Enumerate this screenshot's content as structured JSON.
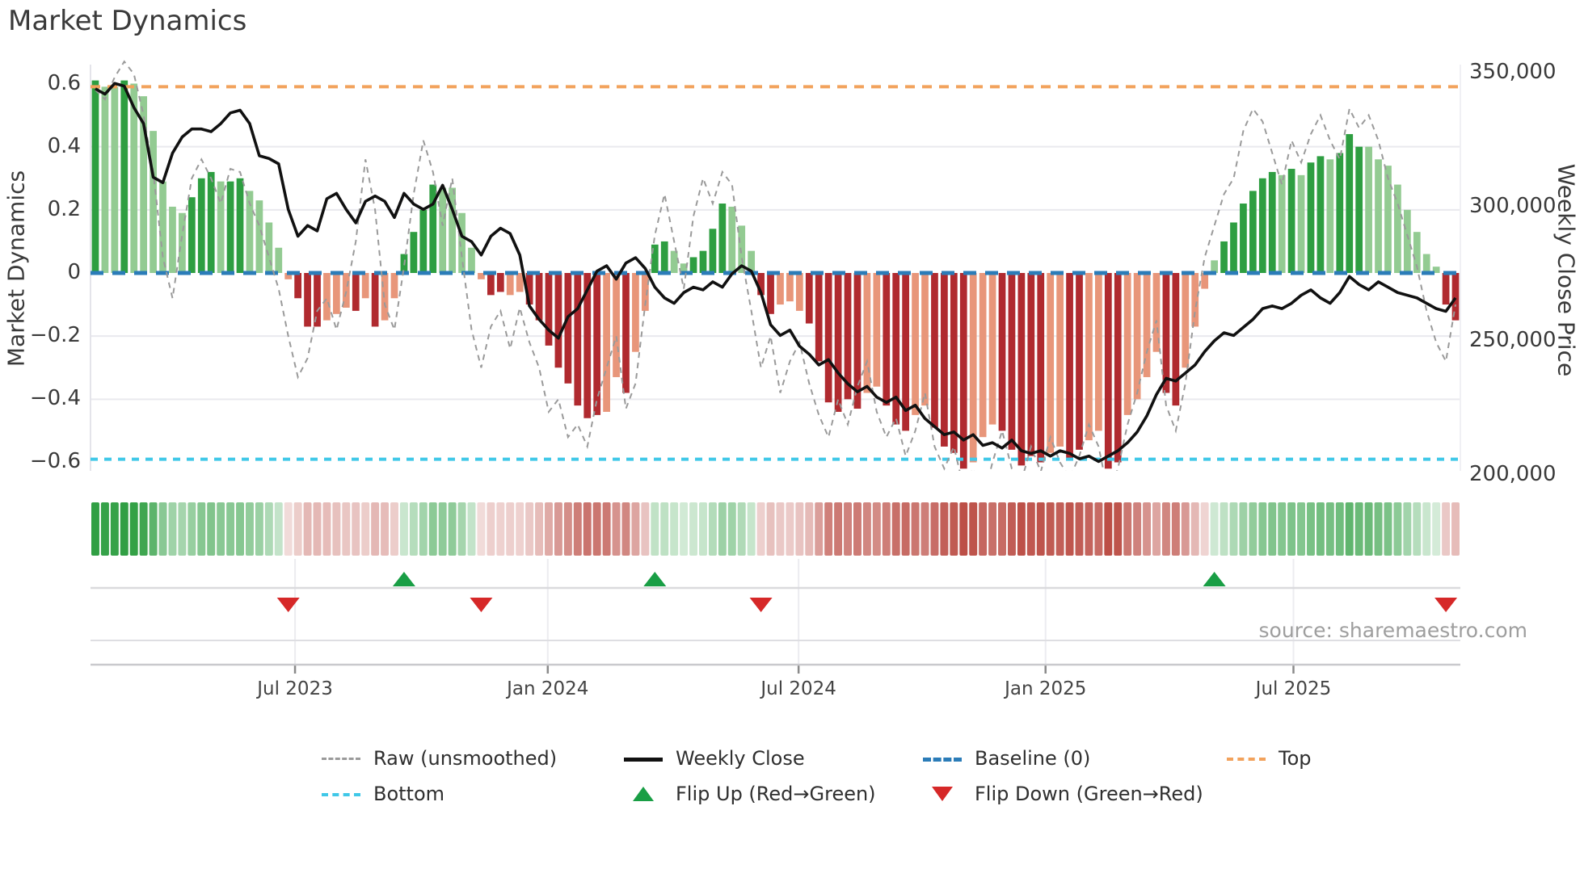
{
  "title": "Market Dynamics",
  "source_text": "source: sharemaestro.com",
  "left_axis": {
    "label": "Market Dynamics",
    "ticks": [
      {
        "label": "0.6",
        "value": 0.6
      },
      {
        "label": "0.4",
        "value": 0.4
      },
      {
        "label": "0.2",
        "value": 0.2
      },
      {
        "label": "0",
        "value": 0.0
      },
      {
        "label": "−0.2",
        "value": -0.2
      },
      {
        "label": "−0.4",
        "value": -0.4
      },
      {
        "label": "−0.6",
        "value": -0.6
      }
    ]
  },
  "right_axis": {
    "label": "Weekly Close Price",
    "ticks": [
      {
        "label": "350,000",
        "value": 350000
      },
      {
        "label": "300,000",
        "value": 300000
      },
      {
        "label": "250,000",
        "value": 250000
      },
      {
        "label": "200,000",
        "value": 200000
      }
    ]
  },
  "x_axis": {
    "ticks": [
      {
        "label": "Jul 2023",
        "week": 21.7
      },
      {
        "label": "Jan 2024",
        "week": 47.9
      },
      {
        "label": "Jul 2024",
        "week": 73.9
      },
      {
        "label": "Jan 2025",
        "week": 99.5
      },
      {
        "label": "Jul 2025",
        "week": 125.2
      }
    ]
  },
  "legend": {
    "rows": [
      [
        {
          "label": "Raw (unsmoothed)",
          "swatch": "raw"
        },
        {
          "label": "Weekly Close",
          "swatch": "close"
        },
        {
          "label": "Baseline (0)",
          "swatch": "baseline"
        },
        {
          "label": "Top",
          "swatch": "top"
        }
      ],
      [
        {
          "label": "Bottom",
          "swatch": "bottom"
        },
        {
          "label": "Flip Up (Red→Green)",
          "swatch": "tri-up"
        },
        {
          "label": "Flip Down (Green→Red)",
          "swatch": "tri-down"
        }
      ]
    ]
  },
  "colors": {
    "bar_green_dark": "#2e9e41",
    "bar_green_light": "#93cb92",
    "bar_red_dark": "#b02a2f",
    "bar_red_light": "#e8967a",
    "heat_green": "#2e9e41",
    "heat_red": "#bc4f47",
    "raw_line": "#9a9a9a",
    "close_line": "#111111",
    "baseline": "#2b7cb8",
    "top_line": "#f2a25c",
    "bottom_line": "#40c8e8",
    "flip_up": "#199e45",
    "flip_down": "#d62828",
    "grid": "#e9e9ee"
  },
  "chart_data": {
    "type": "bar",
    "subtype": "weekly oscillator bars + price lines + sign heatmap + flip markers",
    "weeks": 142,
    "x_description": "weekly observations, early Feb 2023 through early Nov 2025",
    "ylim_left": [
      -0.66,
      0.66
    ],
    "ylim_right": [
      195000,
      355000
    ],
    "reference_lines": {
      "top": {
        "label": "Top",
        "value": 0.59
      },
      "baseline": {
        "label": "Baseline (0)",
        "value": 0.0
      },
      "bottom": {
        "label": "Bottom",
        "value": -0.59
      }
    },
    "bars": {
      "name": "Market Dynamics",
      "values": [
        0.61,
        0.59,
        0.59,
        0.61,
        0.6,
        0.56,
        0.45,
        0.29,
        0.21,
        0.19,
        0.24,
        0.3,
        0.32,
        0.29,
        0.29,
        0.3,
        0.26,
        0.23,
        0.16,
        0.08,
        -0.02,
        -0.08,
        -0.17,
        -0.17,
        -0.15,
        -0.13,
        -0.11,
        -0.12,
        -0.08,
        -0.17,
        -0.15,
        -0.08,
        0.06,
        0.13,
        0.2,
        0.28,
        0.27,
        0.27,
        0.19,
        0.08,
        -0.02,
        -0.07,
        -0.06,
        -0.07,
        -0.06,
        -0.1,
        -0.15,
        -0.23,
        -0.3,
        -0.35,
        -0.42,
        -0.46,
        -0.45,
        -0.44,
        -0.33,
        -0.38,
        -0.25,
        -0.12,
        0.09,
        0.1,
        0.07,
        0.03,
        0.05,
        0.07,
        0.14,
        0.22,
        0.21,
        0.15,
        0.07,
        -0.07,
        -0.13,
        -0.1,
        -0.09,
        -0.12,
        -0.16,
        -0.28,
        -0.41,
        -0.44,
        -0.4,
        -0.43,
        -0.38,
        -0.36,
        -0.42,
        -0.48,
        -0.5,
        -0.45,
        -0.42,
        -0.49,
        -0.55,
        -0.57,
        -0.62,
        -0.6,
        -0.52,
        -0.48,
        -0.5,
        -0.56,
        -0.61,
        -0.58,
        -0.6,
        -0.57,
        -0.55,
        -0.59,
        -0.56,
        -0.53,
        -0.5,
        -0.62,
        -0.6,
        -0.45,
        -0.4,
        -0.33,
        -0.25,
        -0.38,
        -0.42,
        -0.3,
        -0.17,
        -0.05,
        0.04,
        0.1,
        0.16,
        0.22,
        0.26,
        0.3,
        0.32,
        0.31,
        0.33,
        0.31,
        0.35,
        0.37,
        0.36,
        0.38,
        0.44,
        0.4,
        0.4,
        0.36,
        0.34,
        0.28,
        0.2,
        0.13,
        0.06,
        0.02,
        -0.1,
        -0.15
      ],
      "shade": [
        "d",
        "l",
        "l",
        "d",
        "l",
        "l",
        "l",
        "l",
        "l",
        "l",
        "d",
        "d",
        "d",
        "l",
        "d",
        "d",
        "l",
        "l",
        "l",
        "l",
        "l",
        "d",
        "d",
        "d",
        "l",
        "l",
        "l",
        "d",
        "l",
        "d",
        "l",
        "l",
        "d",
        "d",
        "d",
        "d",
        "l",
        "l",
        "l",
        "l",
        "l",
        "d",
        "d",
        "l",
        "l",
        "d",
        "d",
        "d",
        "d",
        "d",
        "d",
        "d",
        "d",
        "l",
        "l",
        "d",
        "l",
        "l",
        "d",
        "d",
        "l",
        "l",
        "d",
        "d",
        "d",
        "d",
        "l",
        "l",
        "l",
        "d",
        "d",
        "l",
        "l",
        "l",
        "d",
        "d",
        "d",
        "d",
        "d",
        "d",
        "l",
        "l",
        "d",
        "d",
        "d",
        "l",
        "l",
        "d",
        "d",
        "d",
        "d",
        "l",
        "l",
        "l",
        "d",
        "d",
        "d",
        "d",
        "d",
        "l",
        "l",
        "d",
        "d",
        "l",
        "l",
        "d",
        "d",
        "l",
        "l",
        "l",
        "l",
        "d",
        "d",
        "l",
        "l",
        "l",
        "l",
        "d",
        "d",
        "d",
        "d",
        "d",
        "d",
        "l",
        "d",
        "l",
        "d",
        "d",
        "l",
        "d",
        "d",
        "d",
        "l",
        "l",
        "l",
        "l",
        "l",
        "l",
        "l",
        "l",
        "d",
        "d"
      ]
    },
    "raw_line": {
      "name": "Raw (unsmoothed)",
      "axis": "left",
      "values": [
        0.58,
        0.55,
        0.62,
        0.67,
        0.63,
        0.5,
        0.32,
        0.05,
        -0.08,
        0.12,
        0.3,
        0.36,
        0.3,
        0.22,
        0.33,
        0.32,
        0.22,
        0.15,
        0.05,
        -0.05,
        -0.2,
        -0.33,
        -0.27,
        -0.12,
        -0.08,
        -0.18,
        -0.06,
        0.1,
        0.36,
        0.2,
        -0.1,
        -0.18,
        0.02,
        0.25,
        0.42,
        0.32,
        0.15,
        0.3,
        0.05,
        -0.18,
        -0.3,
        -0.17,
        -0.12,
        -0.24,
        -0.11,
        -0.22,
        -0.3,
        -0.44,
        -0.4,
        -0.52,
        -0.48,
        -0.55,
        -0.4,
        -0.3,
        -0.2,
        -0.43,
        -0.35,
        -0.1,
        0.12,
        0.25,
        0.1,
        -0.05,
        0.18,
        0.3,
        0.22,
        0.32,
        0.28,
        0.05,
        -0.12,
        -0.3,
        -0.2,
        -0.38,
        -0.28,
        -0.22,
        -0.35,
        -0.45,
        -0.52,
        -0.4,
        -0.48,
        -0.36,
        -0.28,
        -0.44,
        -0.52,
        -0.46,
        -0.58,
        -0.5,
        -0.38,
        -0.55,
        -0.62,
        -0.55,
        -0.68,
        -0.62,
        -0.72,
        -0.6,
        -0.5,
        -0.62,
        -0.66,
        -0.55,
        -0.63,
        -0.52,
        -0.6,
        -0.65,
        -0.58,
        -0.48,
        -0.55,
        -0.7,
        -0.62,
        -0.48,
        -0.38,
        -0.25,
        -0.15,
        -0.42,
        -0.5,
        -0.35,
        -0.12,
        0.05,
        0.15,
        0.25,
        0.3,
        0.45,
        0.52,
        0.48,
        0.38,
        0.28,
        0.42,
        0.35,
        0.44,
        0.5,
        0.42,
        0.36,
        0.52,
        0.46,
        0.5,
        0.42,
        0.3,
        0.22,
        0.12,
        0.02,
        -0.12,
        -0.22,
        -0.28,
        -0.1
      ]
    },
    "close_line": {
      "name": "Weekly Close",
      "axis": "right",
      "values": [
        344000,
        342000,
        346000,
        345000,
        337000,
        331000,
        311000,
        309000,
        320000,
        326000,
        329000,
        329000,
        328000,
        331000,
        335000,
        336000,
        331000,
        319000,
        318000,
        316000,
        299000,
        289000,
        293000,
        291000,
        303000,
        305000,
        299000,
        294000,
        302000,
        304000,
        302000,
        296000,
        305000,
        301000,
        299000,
        301000,
        308000,
        299000,
        289000,
        287000,
        282000,
        289000,
        292000,
        290000,
        282000,
        263000,
        258000,
        254000,
        251000,
        259000,
        262000,
        269000,
        276000,
        278000,
        273000,
        279000,
        281000,
        277000,
        270000,
        266000,
        264000,
        268000,
        270000,
        269000,
        272000,
        270000,
        275000,
        278000,
        276000,
        268000,
        256000,
        252000,
        254000,
        248000,
        245000,
        241000,
        243000,
        238000,
        234000,
        231000,
        233000,
        229000,
        227000,
        229000,
        224000,
        226000,
        221000,
        218000,
        215000,
        216000,
        213000,
        215000,
        211000,
        212000,
        210000,
        213000,
        209000,
        208000,
        209000,
        207000,
        209000,
        208000,
        206000,
        207000,
        205000,
        207000,
        209000,
        212000,
        216000,
        222000,
        230000,
        236000,
        235000,
        238000,
        241000,
        246000,
        250000,
        253000,
        252000,
        255000,
        258000,
        262000,
        263000,
        262000,
        264000,
        267000,
        269000,
        266000,
        264000,
        268000,
        274000,
        271000,
        269000,
        272000,
        270000,
        268000,
        267000,
        266000,
        264000,
        262000,
        261000,
        266000
      ]
    },
    "heatmap": {
      "name": "sign/strength strip",
      "derived_from": "bars.values",
      "positive_color": "#2e9e41",
      "negative_color": "#bc4f47"
    },
    "flip_markers": [
      {
        "direction": "down",
        "week": 21
      },
      {
        "direction": "up",
        "week": 33
      },
      {
        "direction": "down",
        "week": 41
      },
      {
        "direction": "up",
        "week": 59
      },
      {
        "direction": "down",
        "week": 70
      },
      {
        "direction": "up",
        "week": 117
      },
      {
        "direction": "down",
        "week": 141
      }
    ]
  }
}
